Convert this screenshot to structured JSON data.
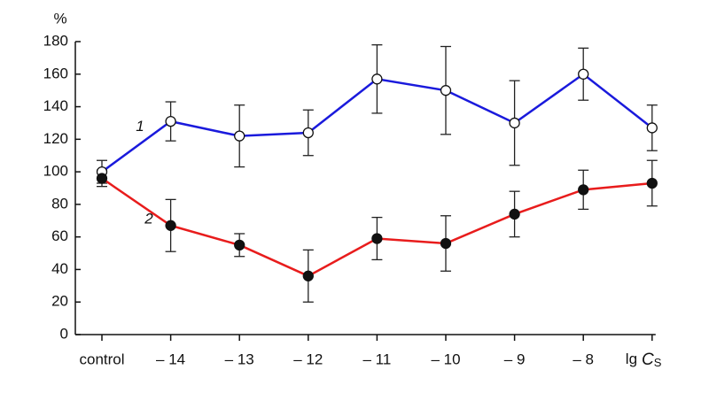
{
  "chart_data": {
    "type": "line",
    "ylabel": "%",
    "xlabel": [
      "lg",
      "C",
      "S"
    ],
    "categories": [
      "control",
      "– 14",
      "– 13",
      "– 12",
      "– 11",
      "– 10",
      "– 9",
      "– 8",
      null
    ],
    "series": [
      {
        "name": "1",
        "color": "#1a1adc",
        "marker": "open",
        "values": [
          100,
          131,
          122,
          124,
          157,
          150,
          130,
          160,
          127
        ],
        "errors": [
          7,
          12,
          19,
          14,
          21,
          27,
          26,
          16,
          14
        ]
      },
      {
        "name": "2",
        "color": "#e81c1c",
        "marker": "filled",
        "values": [
          96,
          67,
          55,
          36,
          59,
          56,
          74,
          89,
          93
        ],
        "errors": [
          5,
          16,
          7,
          16,
          13,
          17,
          14,
          12,
          14
        ]
      }
    ],
    "ylim": [
      0,
      180
    ],
    "yticks": [
      0,
      20,
      40,
      60,
      80,
      100,
      120,
      140,
      160,
      180
    ]
  }
}
